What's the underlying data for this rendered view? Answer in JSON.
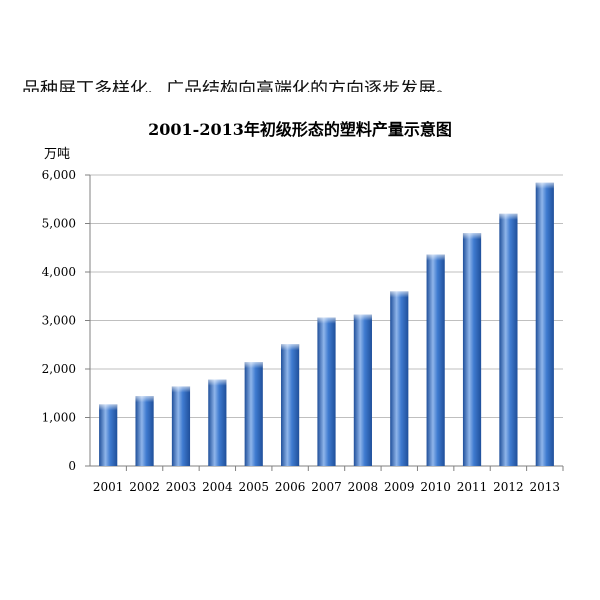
{
  "page": {
    "cutoff_text": "品种屏丁多样化、广品结构向高端化的方向逐步发展。"
  },
  "chart_data": {
    "type": "bar",
    "title": "2001-2013年初级形态的塑料产量示意图",
    "ylabel": "万吨",
    "xlabel": "",
    "categories": [
      "2001",
      "2002",
      "2003",
      "2004",
      "2005",
      "2006",
      "2007",
      "2008",
      "2009",
      "2010",
      "2011",
      "2012",
      "2013"
    ],
    "values": [
      1270,
      1440,
      1640,
      1780,
      2140,
      2510,
      3060,
      3120,
      3600,
      4360,
      4800,
      5200,
      5840
    ],
    "ylim": [
      0,
      6000
    ],
    "yticks": [
      0,
      1000,
      2000,
      3000,
      4000,
      5000,
      6000
    ],
    "ytick_labels": [
      "0",
      "1,000",
      "2,000",
      "3,000",
      "4,000",
      "5,000",
      "6,000"
    ],
    "grid": true,
    "legend": "none",
    "colors": {
      "bar_dark": "#1f4f9a",
      "bar_mid": "#3f7bd0",
      "bar_light": "#8fb5ea",
      "grid": "#bfbfbf",
      "axis": "#808080"
    }
  }
}
